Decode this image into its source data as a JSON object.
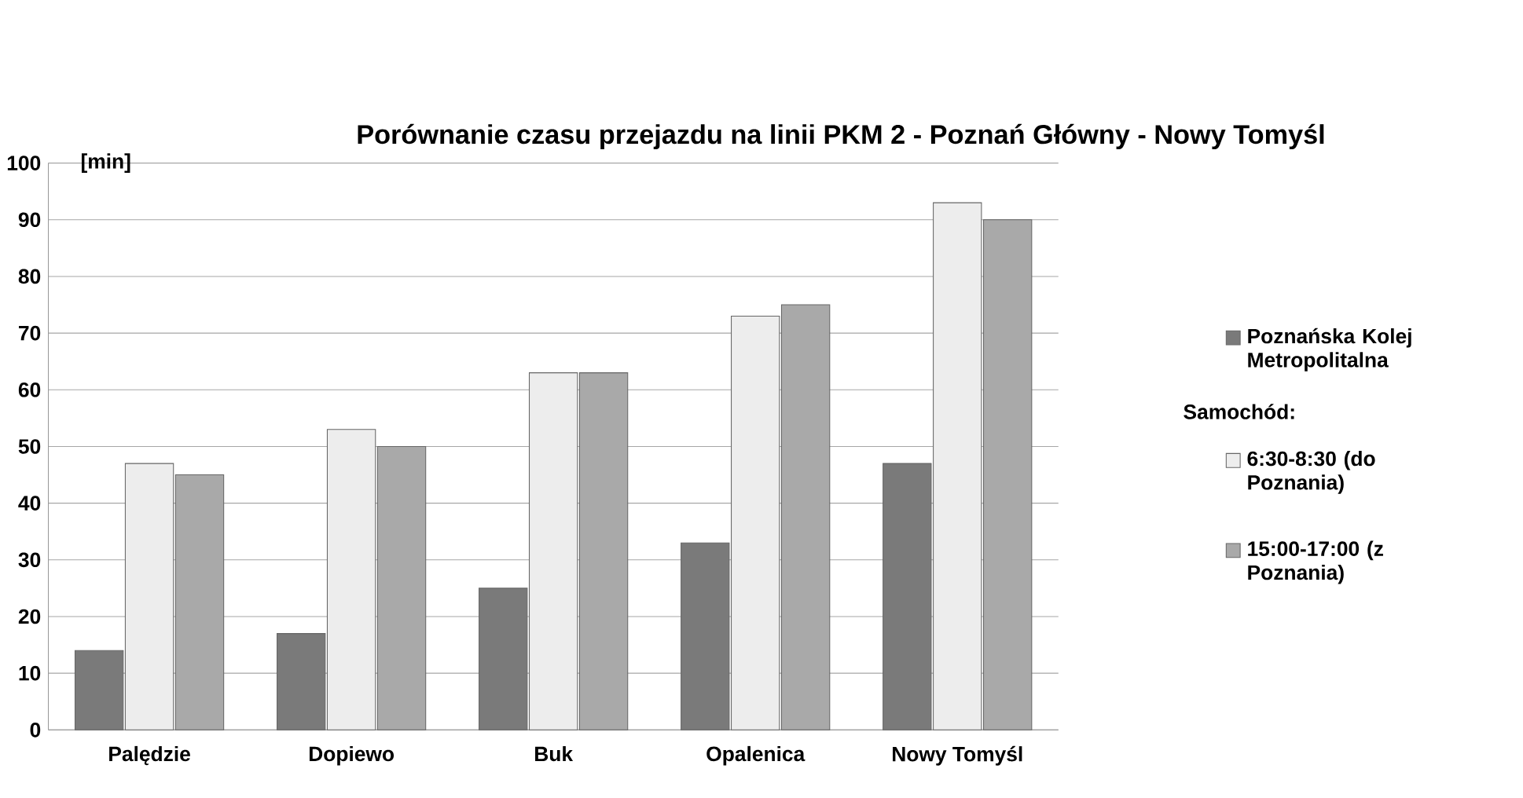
{
  "chart_data": {
    "type": "bar",
    "title": "Porównanie czasu przejazdu na linii PKM 2 - Poznań Główny - Nowy Tomyśl",
    "ylabel": "[min]",
    "categories": [
      "Palędzie",
      "Dopiewo",
      "Buk",
      "Opalenica",
      "Nowy Tomyśl"
    ],
    "series": [
      {
        "name": "Poznańska Kolej Metropolitalna",
        "color": "#7a7a7a",
        "values": [
          14,
          17,
          25,
          33,
          47
        ]
      },
      {
        "name": "6:30-8:30 (do Poznania)",
        "color": "#ededed",
        "values": [
          47,
          53,
          63,
          73,
          93
        ]
      },
      {
        "name": "15:00-17:00 (z Poznania)",
        "color": "#a9a9a9",
        "values": [
          45,
          50,
          63,
          75,
          90
        ]
      }
    ],
    "annotations": [
      "Samochód:"
    ],
    "ylim": [
      0,
      100
    ],
    "yticks": [
      0,
      10,
      20,
      30,
      40,
      50,
      60,
      70,
      80,
      90,
      100
    ],
    "grid": "y",
    "legend": "right"
  }
}
